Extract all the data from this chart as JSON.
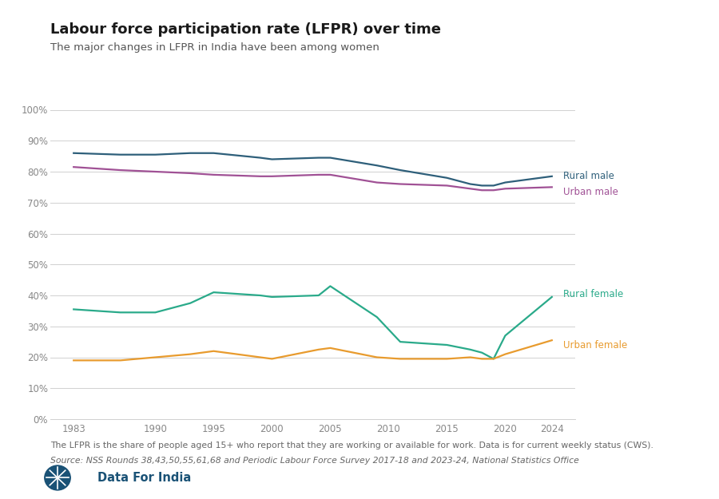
{
  "title": "Labour force participation rate (LFPR) over time",
  "subtitle": "The major changes in LFPR in India have been among women",
  "footnote1": "The LFPR is the share of people aged 15+ who report that they are working or available for work. Data is for current weekly status (CWS).",
  "footnote2": "Source: NSS Rounds 38,43,50,55,61,68 and Periodic Labour Force Survey 2017-18 and 2023-24, National Statistics Office",
  "branding": "Data For India",
  "years": [
    1983,
    1987,
    1990,
    1993,
    1995,
    1999,
    2000,
    2004,
    2005,
    2009,
    2011,
    2015,
    2017,
    2018,
    2019,
    2020,
    2024
  ],
  "rural_male": [
    86.0,
    85.5,
    85.5,
    86.0,
    86.0,
    84.5,
    84.0,
    84.5,
    84.5,
    82.0,
    80.5,
    78.0,
    76.0,
    75.5,
    75.5,
    76.5,
    78.5
  ],
  "urban_male": [
    81.5,
    80.5,
    80.0,
    79.5,
    79.0,
    78.5,
    78.5,
    79.0,
    79.0,
    76.5,
    76.0,
    75.5,
    74.5,
    74.0,
    74.0,
    74.5,
    75.0
  ],
  "rural_female": [
    35.5,
    34.5,
    34.5,
    37.5,
    41.0,
    40.0,
    39.5,
    40.0,
    43.0,
    33.0,
    25.0,
    24.0,
    22.5,
    21.5,
    19.5,
    27.0,
    39.5
  ],
  "urban_female": [
    19.0,
    19.0,
    20.0,
    21.0,
    22.0,
    20.0,
    19.5,
    22.5,
    23.0,
    20.0,
    19.5,
    19.5,
    20.0,
    19.5,
    19.5,
    21.0,
    25.5
  ],
  "color_rural_male": "#2e5f7a",
  "color_urban_male": "#a05195",
  "color_rural_female": "#2aaa8a",
  "color_urban_female": "#e89b2e",
  "xlim": [
    1981,
    2026
  ],
  "ylim": [
    0,
    100
  ],
  "yticks": [
    0,
    10,
    20,
    30,
    40,
    50,
    60,
    70,
    80,
    90,
    100
  ],
  "xticks": [
    1983,
    1990,
    1995,
    2000,
    2005,
    2010,
    2015,
    2020,
    2024
  ],
  "bg_color": "#ffffff",
  "grid_color": "#d0d0d0",
  "logo_color": "#1a5276",
  "label_rural_male": "Rural male",
  "label_urban_male": "Urban male",
  "label_rural_female": "Rural female",
  "label_urban_female": "Urban female"
}
